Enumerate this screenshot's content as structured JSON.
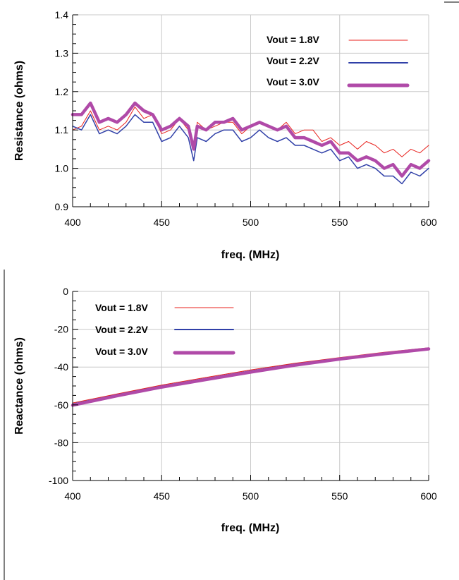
{
  "chart_data": [
    {
      "type": "line",
      "xlabel": "freq. (MHz)",
      "ylabel": "Resistance (ohms)",
      "xlim": [
        400,
        600
      ],
      "ylim": [
        0.9,
        1.4
      ],
      "x_ticks": [
        400,
        450,
        500,
        550,
        600
      ],
      "y_ticks": [
        0.9,
        1.0,
        1.1,
        1.2,
        1.3,
        1.4
      ],
      "x_tick_labels": [
        "400",
        "450",
        "500",
        "550",
        "600"
      ],
      "y_tick_labels": [
        "0.9",
        "1.0",
        "1.1",
        "1.2",
        "1.3",
        "1.4"
      ],
      "grid": true,
      "legend_position": "top-right",
      "series": [
        {
          "name": "Vout = 1.8V",
          "color": "#e8201c",
          "x": [
            400,
            405,
            410,
            415,
            420,
            425,
            430,
            435,
            440,
            445,
            450,
            455,
            460,
            465,
            468,
            470,
            475,
            480,
            485,
            490,
            495,
            500,
            505,
            510,
            515,
            520,
            525,
            530,
            535,
            540,
            545,
            550,
            555,
            560,
            565,
            570,
            575,
            580,
            585,
            590,
            595,
            600
          ],
          "values": [
            1.1,
            1.11,
            1.15,
            1.1,
            1.11,
            1.1,
            1.12,
            1.16,
            1.13,
            1.14,
            1.09,
            1.1,
            1.13,
            1.1,
            1.05,
            1.12,
            1.1,
            1.11,
            1.12,
            1.12,
            1.09,
            1.11,
            1.12,
            1.11,
            1.1,
            1.12,
            1.09,
            1.1,
            1.1,
            1.07,
            1.08,
            1.06,
            1.07,
            1.05,
            1.07,
            1.06,
            1.04,
            1.05,
            1.03,
            1.05,
            1.04,
            1.06
          ]
        },
        {
          "name": "Vout = 2.2V",
          "color": "#3040a8",
          "x": [
            400,
            405,
            410,
            415,
            420,
            425,
            430,
            435,
            440,
            445,
            450,
            455,
            460,
            465,
            468,
            470,
            475,
            480,
            485,
            490,
            495,
            500,
            505,
            510,
            515,
            520,
            525,
            530,
            535,
            540,
            545,
            550,
            555,
            560,
            565,
            570,
            575,
            580,
            585,
            590,
            595,
            600
          ],
          "values": [
            1.11,
            1.1,
            1.14,
            1.09,
            1.1,
            1.09,
            1.11,
            1.14,
            1.12,
            1.12,
            1.07,
            1.08,
            1.11,
            1.08,
            1.02,
            1.08,
            1.07,
            1.09,
            1.1,
            1.1,
            1.07,
            1.08,
            1.1,
            1.08,
            1.07,
            1.08,
            1.06,
            1.06,
            1.05,
            1.04,
            1.05,
            1.02,
            1.03,
            1.0,
            1.01,
            1.0,
            0.98,
            0.98,
            0.96,
            0.99,
            0.98,
            1.0
          ]
        },
        {
          "name": "Vout = 3.0V",
          "color": "#b04aa8",
          "x": [
            400,
            405,
            410,
            415,
            420,
            425,
            430,
            435,
            440,
            445,
            450,
            455,
            460,
            465,
            468,
            470,
            475,
            480,
            485,
            490,
            495,
            500,
            505,
            510,
            515,
            520,
            525,
            530,
            535,
            540,
            545,
            550,
            555,
            560,
            565,
            570,
            575,
            580,
            585,
            590,
            595,
            600
          ],
          "values": [
            1.14,
            1.14,
            1.17,
            1.12,
            1.13,
            1.12,
            1.14,
            1.17,
            1.15,
            1.14,
            1.1,
            1.11,
            1.13,
            1.11,
            1.05,
            1.11,
            1.1,
            1.12,
            1.12,
            1.13,
            1.1,
            1.11,
            1.12,
            1.11,
            1.1,
            1.11,
            1.08,
            1.08,
            1.07,
            1.06,
            1.07,
            1.04,
            1.04,
            1.02,
            1.03,
            1.02,
            1.0,
            1.01,
            0.98,
            1.01,
            1.0,
            1.02
          ]
        }
      ]
    },
    {
      "type": "line",
      "xlabel": "freq. (MHz)",
      "ylabel": "Reactance (ohms)",
      "xlim": [
        400,
        600
      ],
      "ylim": [
        -100,
        0
      ],
      "x_ticks": [
        400,
        450,
        500,
        550,
        600
      ],
      "y_ticks": [
        -100,
        -80,
        -60,
        -40,
        -20,
        0
      ],
      "x_tick_labels": [
        "400",
        "450",
        "500",
        "550",
        "600"
      ],
      "y_tick_labels": [
        "-100",
        "-80",
        "-60",
        "-40",
        "-20",
        "0"
      ],
      "grid": true,
      "legend_position": "top-left",
      "series": [
        {
          "name": "Vout = 1.8V",
          "color": "#e8201c",
          "x": [
            400,
            425,
            450,
            475,
            500,
            525,
            550,
            575,
            600
          ],
          "values": [
            -59.0,
            -54.2,
            -49.5,
            -45.5,
            -41.5,
            -38.0,
            -35.0,
            -32.2,
            -29.8
          ]
        },
        {
          "name": "Vout = 2.2V",
          "color": "#3040a8",
          "x": [
            400,
            425,
            450,
            475,
            500,
            525,
            550,
            575,
            600
          ],
          "values": [
            -59.5,
            -54.6,
            -50.0,
            -46.0,
            -42.0,
            -38.4,
            -35.3,
            -32.5,
            -30.0
          ]
        },
        {
          "name": "Vout = 3.0V",
          "color": "#b04aa8",
          "x": [
            400,
            425,
            450,
            475,
            500,
            525,
            550,
            575,
            600
          ],
          "values": [
            -60.2,
            -55.2,
            -50.6,
            -46.6,
            -42.7,
            -39.0,
            -35.8,
            -33.0,
            -30.4
          ]
        }
      ]
    }
  ]
}
